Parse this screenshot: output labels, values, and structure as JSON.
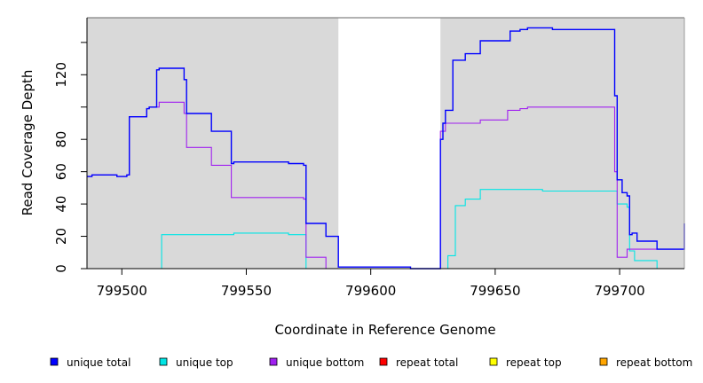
{
  "chart_data": {
    "type": "line",
    "title": "",
    "xlabel": "Coordinate in Reference Genome",
    "ylabel": "Read Coverage Depth",
    "xlim": [
      799486,
      799726
    ],
    "ylim": [
      0,
      155
    ],
    "xticks": [
      799500,
      799550,
      799600,
      799650,
      799700
    ],
    "xtick_labels": [
      "799500",
      "799550",
      "799600",
      "799650",
      "799700"
    ],
    "yticks": [
      0,
      20,
      40,
      60,
      80,
      120
    ],
    "ytick_labels": [
      "0",
      "20",
      "40",
      "60",
      "80",
      "120"
    ],
    "ytick_marks_unlabeled": [
      100,
      140
    ],
    "grid": false,
    "background": "#d9d9d9",
    "gap_region": {
      "x": [
        799587,
        799628
      ],
      "color": "#ffffff"
    },
    "legend_position": "bottom",
    "series": [
      {
        "name": "unique total",
        "color": "#0000ff",
        "step": true,
        "points": [
          [
            799486,
            57
          ],
          [
            799488,
            58
          ],
          [
            799498,
            57
          ],
          [
            799502,
            58
          ],
          [
            799503,
            94
          ],
          [
            799510,
            99
          ],
          [
            799511,
            100
          ],
          [
            799514,
            123
          ],
          [
            799515,
            124
          ],
          [
            799525,
            117
          ],
          [
            799526,
            96
          ],
          [
            799536,
            85
          ],
          [
            799544,
            65
          ],
          [
            799545,
            66
          ],
          [
            799567,
            65
          ],
          [
            799573,
            64
          ],
          [
            799574,
            28
          ],
          [
            799582,
            20
          ],
          [
            799586,
            20
          ],
          [
            799587,
            1
          ],
          [
            799616,
            0
          ],
          [
            799627,
            0
          ],
          [
            799628,
            80
          ],
          [
            799629,
            90
          ],
          [
            799630,
            98
          ],
          [
            799633,
            129
          ],
          [
            799638,
            133
          ],
          [
            799644,
            141
          ],
          [
            799656,
            147
          ],
          [
            799660,
            148
          ],
          [
            799663,
            149
          ],
          [
            799673,
            148
          ],
          [
            799698,
            107
          ],
          [
            799699,
            55
          ],
          [
            799701,
            47
          ],
          [
            799703,
            45
          ],
          [
            799704,
            21
          ],
          [
            799705,
            22
          ],
          [
            799707,
            17
          ],
          [
            799715,
            12
          ],
          [
            799726,
            28
          ]
        ]
      },
      {
        "name": "unique top",
        "color": "#00e5e5",
        "step": true,
        "points": [
          [
            799486,
            0
          ],
          [
            799515,
            0
          ],
          [
            799516,
            21
          ],
          [
            799545,
            22
          ],
          [
            799567,
            21
          ],
          [
            799573,
            21
          ],
          [
            799574,
            0
          ],
          [
            799616,
            0
          ],
          [
            799631,
            8
          ],
          [
            799634,
            39
          ],
          [
            799638,
            43
          ],
          [
            799644,
            49
          ],
          [
            799669,
            48
          ],
          [
            799699,
            40
          ],
          [
            799703,
            38
          ],
          [
            799704,
            11
          ],
          [
            799706,
            5
          ],
          [
            799715,
            0
          ],
          [
            799726,
            0
          ]
        ]
      },
      {
        "name": "unique bottom",
        "color": "#a020f0",
        "step": true,
        "points": [
          [
            799486,
            57
          ],
          [
            799488,
            58
          ],
          [
            799498,
            57
          ],
          [
            799502,
            58
          ],
          [
            799503,
            94
          ],
          [
            799510,
            99
          ],
          [
            799511,
            100
          ],
          [
            799515,
            103
          ],
          [
            799525,
            96
          ],
          [
            799526,
            75
          ],
          [
            799536,
            64
          ],
          [
            799544,
            44
          ],
          [
            799573,
            43
          ],
          [
            799574,
            7
          ],
          [
            799582,
            0
          ],
          [
            799616,
            0
          ],
          [
            799628,
            85
          ],
          [
            799630,
            90
          ],
          [
            799644,
            92
          ],
          [
            799655,
            98
          ],
          [
            799660,
            99
          ],
          [
            799663,
            100
          ],
          [
            799698,
            60
          ],
          [
            799699,
            7
          ],
          [
            799703,
            12
          ],
          [
            799715,
            12
          ],
          [
            799726,
            28
          ]
        ]
      },
      {
        "name": "repeat total",
        "color": "#ff0000",
        "step": true,
        "points": [
          [
            799486,
            0
          ],
          [
            799726,
            0
          ]
        ]
      },
      {
        "name": "repeat top",
        "color": "#ffff00",
        "step": true,
        "points": [
          [
            799486,
            0
          ],
          [
            799726,
            0
          ]
        ]
      },
      {
        "name": "repeat bottom",
        "color": "#ffa500",
        "step": true,
        "points": [
          [
            799486,
            0
          ],
          [
            799726,
            0
          ]
        ]
      }
    ]
  }
}
